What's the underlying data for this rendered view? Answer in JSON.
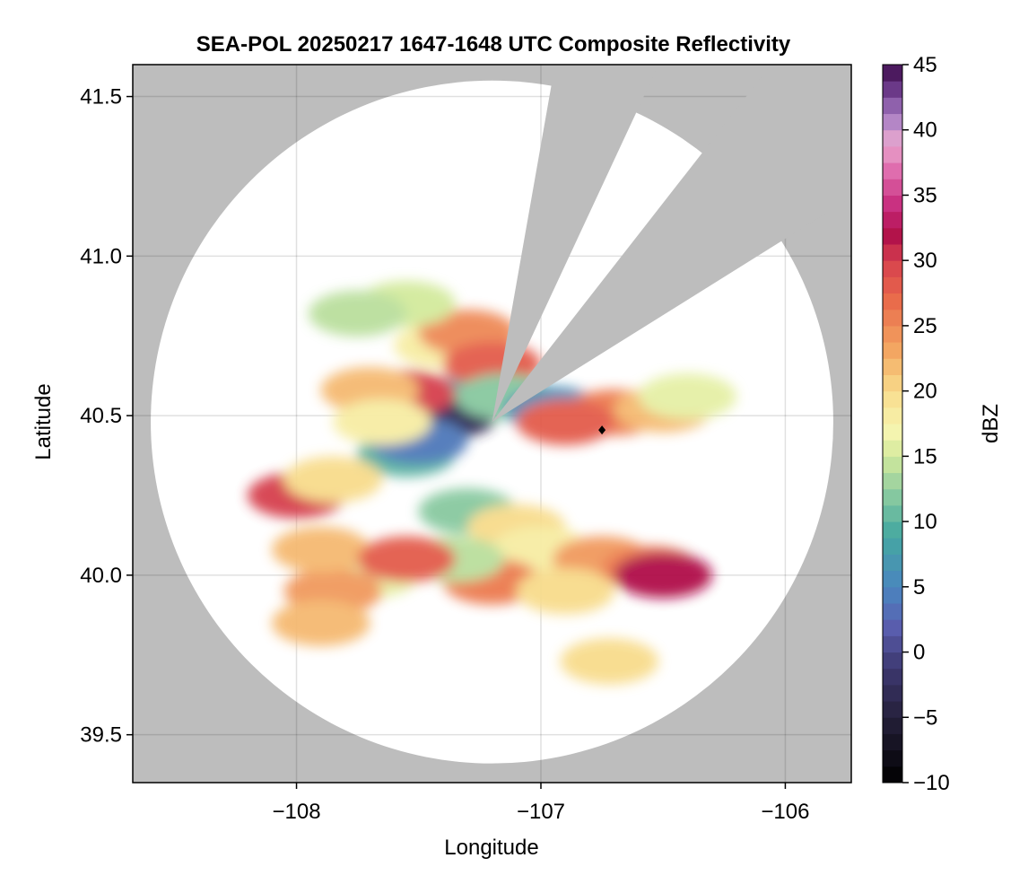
{
  "chart_data": {
    "type": "heatmap",
    "title": "SEA-POL 20250217 1647-1648 UTC Composite Reflectivity",
    "xlabel": "Longitude",
    "ylabel": "Latitude",
    "xlim": [
      -108.67,
      -105.73
    ],
    "ylim": [
      39.35,
      41.6
    ],
    "xticks": [
      -108,
      -107,
      -106
    ],
    "xtick_labels": [
      "−108",
      "−107",
      "−106"
    ],
    "yticks": [
      39.5,
      40.0,
      40.5,
      41.0,
      41.5
    ],
    "ytick_labels": [
      "39.5",
      "40.0",
      "40.5",
      "41.0",
      "41.5"
    ],
    "grid": true,
    "background_color": "#bdbdbd",
    "coverage_color": "#ffffff",
    "radar_site": {
      "lon": -107.2,
      "lat": 40.48
    },
    "coverage_radius_deg_lat": 1.07,
    "blocked_sectors_deg": [
      [
        10,
        25
      ],
      [
        38,
        58
      ]
    ],
    "marker": {
      "lon": -106.75,
      "lat": 40.455,
      "shape": "diamond",
      "color": "#000000"
    },
    "echo_cells": [
      {
        "lon": -107.4,
        "lat": 40.72,
        "dbz": 18
      },
      {
        "lon": -107.3,
        "lat": 40.76,
        "dbz": 25
      },
      {
        "lon": -107.2,
        "lat": 40.66,
        "dbz": 28
      },
      {
        "lon": -107.55,
        "lat": 40.85,
        "dbz": 15
      },
      {
        "lon": -107.75,
        "lat": 40.82,
        "dbz": 14
      },
      {
        "lon": -107.45,
        "lat": 40.55,
        "dbz": 8
      },
      {
        "lon": -107.38,
        "lat": 40.5,
        "dbz": -3
      },
      {
        "lon": -107.55,
        "lat": 40.57,
        "dbz": 30
      },
      {
        "lon": -107.7,
        "lat": 40.58,
        "dbz": 22
      },
      {
        "lon": -107.15,
        "lat": 40.56,
        "dbz": 12
      },
      {
        "lon": -106.95,
        "lat": 40.52,
        "dbz": 6
      },
      {
        "lon": -106.7,
        "lat": 40.51,
        "dbz": 26
      },
      {
        "lon": -106.5,
        "lat": 40.52,
        "dbz": 22
      },
      {
        "lon": -106.9,
        "lat": 40.48,
        "dbz": 28
      },
      {
        "lon": -106.4,
        "lat": 40.56,
        "dbz": 16
      },
      {
        "lon": -107.55,
        "lat": 40.38,
        "dbz": 10
      },
      {
        "lon": -107.5,
        "lat": 40.42,
        "dbz": 4
      },
      {
        "lon": -107.3,
        "lat": 40.2,
        "dbz": 12
      },
      {
        "lon": -107.1,
        "lat": 40.15,
        "dbz": 20
      },
      {
        "lon": -107.0,
        "lat": 40.08,
        "dbz": 18
      },
      {
        "lon": -106.75,
        "lat": 40.05,
        "dbz": 24
      },
      {
        "lon": -106.55,
        "lat": 40.02,
        "dbz": 26
      },
      {
        "lon": -106.5,
        "lat": 40.0,
        "dbz": 32
      },
      {
        "lon": -107.2,
        "lat": 39.98,
        "dbz": 26
      },
      {
        "lon": -106.9,
        "lat": 39.95,
        "dbz": 20
      },
      {
        "lon": -107.35,
        "lat": 40.05,
        "dbz": 14
      },
      {
        "lon": -107.7,
        "lat": 40.0,
        "dbz": 16
      },
      {
        "lon": -107.85,
        "lat": 39.95,
        "dbz": 24
      },
      {
        "lon": -107.9,
        "lat": 40.08,
        "dbz": 22
      },
      {
        "lon": -108.0,
        "lat": 40.25,
        "dbz": 30
      },
      {
        "lon": -107.85,
        "lat": 40.3,
        "dbz": 20
      },
      {
        "lon": -107.55,
        "lat": 40.05,
        "dbz": 28
      },
      {
        "lon": -107.9,
        "lat": 39.85,
        "dbz": 22
      },
      {
        "lon": -106.72,
        "lat": 39.73,
        "dbz": 20
      },
      {
        "lon": -107.65,
        "lat": 40.48,
        "dbz": 18
      }
    ],
    "colorbar": {
      "label": "dBZ",
      "min": -10,
      "max": 45,
      "ticks": [
        -10,
        -5,
        0,
        5,
        10,
        15,
        20,
        25,
        30,
        35,
        40,
        45
      ],
      "tick_labels": [
        "−10",
        "−5",
        "0",
        "5",
        "10",
        "15",
        "20",
        "25",
        "30",
        "35",
        "40",
        "45"
      ],
      "stops": [
        {
          "v": -10,
          "c": "#000000"
        },
        {
          "v": -5,
          "c": "#25203a"
        },
        {
          "v": -1,
          "c": "#3f3a73"
        },
        {
          "v": 2,
          "c": "#5a5fb0"
        },
        {
          "v": 5,
          "c": "#4a86bf"
        },
        {
          "v": 9,
          "c": "#45a8a0"
        },
        {
          "v": 12,
          "c": "#88c9a0"
        },
        {
          "v": 15,
          "c": "#d3ea9c"
        },
        {
          "v": 17,
          "c": "#f6f5b0"
        },
        {
          "v": 20,
          "c": "#f8dc8c"
        },
        {
          "v": 23,
          "c": "#f3a863"
        },
        {
          "v": 27,
          "c": "#e96a4a"
        },
        {
          "v": 30,
          "c": "#d6404e"
        },
        {
          "v": 32,
          "c": "#b0104a"
        },
        {
          "v": 34,
          "c": "#c6287a"
        },
        {
          "v": 37,
          "c": "#e070b0"
        },
        {
          "v": 39,
          "c": "#e8a8cf"
        },
        {
          "v": 41,
          "c": "#a87ec4"
        },
        {
          "v": 43,
          "c": "#6e3c8c"
        },
        {
          "v": 45,
          "c": "#3c0a4a"
        }
      ]
    }
  }
}
